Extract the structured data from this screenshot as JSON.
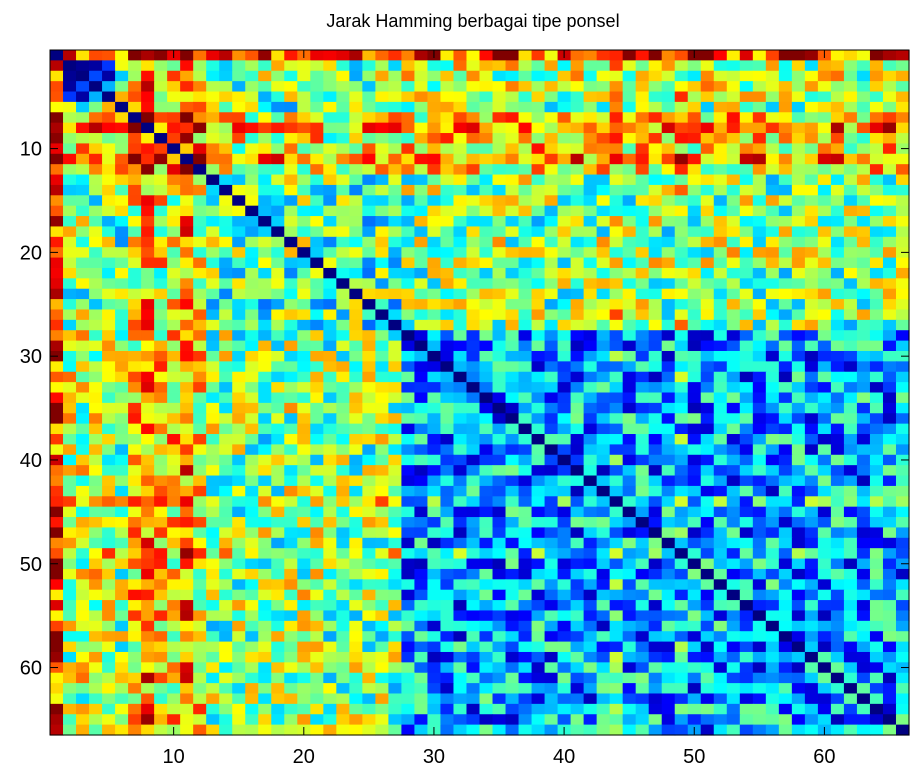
{
  "chart_data": {
    "type": "heatmap",
    "title": "Jarak Hamming berbagai tipe ponsel",
    "xlabel": "",
    "ylabel": "",
    "n_rows": 66,
    "n_cols": 66,
    "x_range": [
      0.5,
      66.5
    ],
    "y_range": [
      0.5,
      66.5
    ],
    "y_axis_direction": "reversed",
    "x_ticks": [
      10,
      20,
      30,
      40,
      50,
      60
    ],
    "x_tick_labels": [
      "10",
      "20",
      "30",
      "40",
      "50",
      "60"
    ],
    "y_ticks": [
      10,
      20,
      30,
      40,
      50,
      60
    ],
    "y_tick_labels": [
      "10",
      "20",
      "30",
      "40",
      "50",
      "60"
    ],
    "colormap": "jet",
    "grid": false,
    "legend": "none",
    "diagonal_value": 0,
    "cell_values_note_none": true,
    "frame_color": "#000000",
    "background_color": "#ffffff"
  }
}
